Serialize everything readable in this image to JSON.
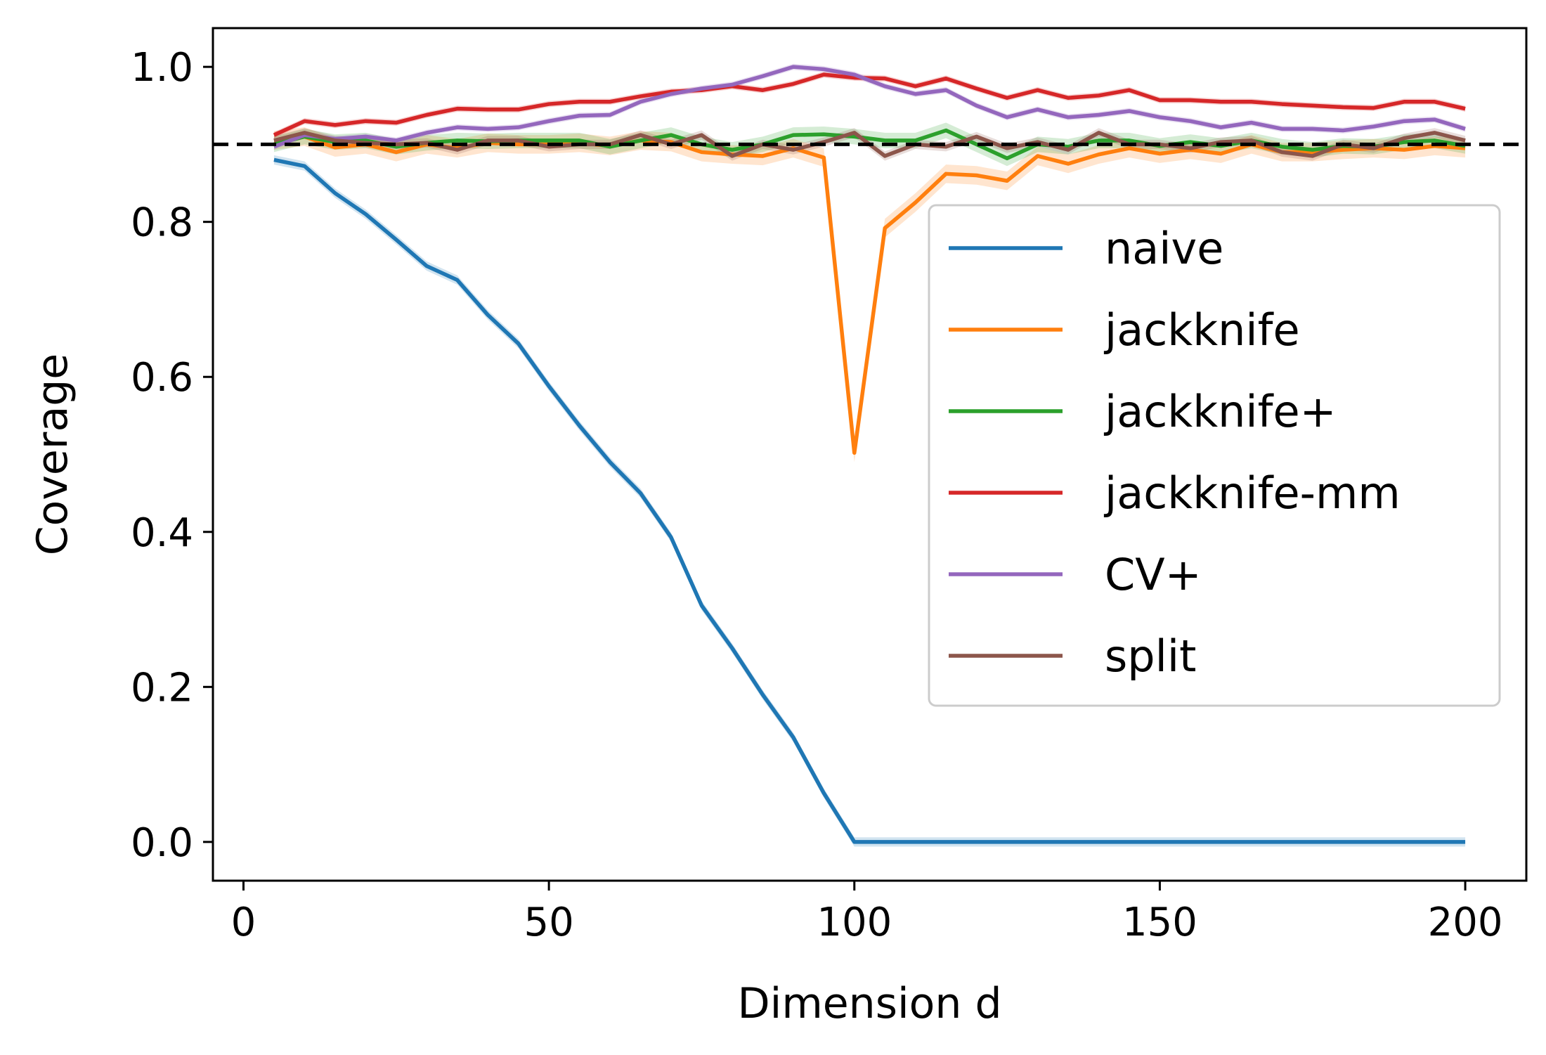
{
  "chart_data": {
    "type": "line",
    "title": "",
    "xlabel": "Dimension d",
    "ylabel": "Coverage",
    "xlim": [
      -5,
      210
    ],
    "ylim": [
      -0.05,
      1.05
    ],
    "xticks": [
      0,
      50,
      100,
      150,
      200
    ],
    "xtick_labels": [
      "0",
      "50",
      "100",
      "150",
      "200"
    ],
    "yticks": [
      0.0,
      0.2,
      0.4,
      0.6,
      0.8,
      1.0
    ],
    "ytick_labels": [
      "0.0",
      "0.2",
      "0.4",
      "0.6",
      "0.8",
      "1.0"
    ],
    "reference_line": {
      "y": 0.9,
      "style": "dashed",
      "color": "#000000"
    },
    "legend_position": "center-right",
    "grid": false,
    "x": [
      5,
      10,
      15,
      20,
      25,
      30,
      35,
      40,
      45,
      50,
      55,
      60,
      65,
      70,
      75,
      80,
      85,
      90,
      95,
      100,
      105,
      110,
      115,
      120,
      125,
      130,
      135,
      140,
      145,
      150,
      155,
      160,
      165,
      170,
      175,
      180,
      185,
      190,
      195,
      200
    ],
    "series": [
      {
        "name": "naive",
        "color": "#1f77b4",
        "values": [
          0.88,
          0.872,
          0.837,
          0.81,
          0.777,
          0.743,
          0.725,
          0.68,
          0.643,
          0.588,
          0.537,
          0.49,
          0.45,
          0.393,
          0.305,
          0.25,
          0.19,
          0.135,
          0.063,
          0.0,
          0.0,
          0.0,
          0.0,
          0.0,
          0.0,
          0.0,
          0.0,
          0.0,
          0.0,
          0.0,
          0.0,
          0.0,
          0.0,
          0.0,
          0.0,
          0.0,
          0.0,
          0.0,
          0.0,
          0.0
        ],
        "band": 0.006
      },
      {
        "name": "jackknife",
        "color": "#ff7f0e",
        "values": [
          0.905,
          0.91,
          0.896,
          0.9,
          0.89,
          0.9,
          0.895,
          0.902,
          0.9,
          0.9,
          0.902,
          0.898,
          0.905,
          0.903,
          0.89,
          0.887,
          0.885,
          0.895,
          0.883,
          0.502,
          0.792,
          0.825,
          0.862,
          0.86,
          0.853,
          0.885,
          0.875,
          0.887,
          0.895,
          0.888,
          0.893,
          0.888,
          0.9,
          0.89,
          0.89,
          0.893,
          0.895,
          0.893,
          0.898,
          0.895
        ],
        "band": 0.012
      },
      {
        "name": "jackknife+",
        "color": "#2ca02c",
        "values": [
          0.9,
          0.91,
          0.903,
          0.905,
          0.897,
          0.902,
          0.905,
          0.904,
          0.905,
          0.905,
          0.905,
          0.897,
          0.905,
          0.912,
          0.9,
          0.893,
          0.9,
          0.912,
          0.913,
          0.91,
          0.905,
          0.905,
          0.918,
          0.9,
          0.882,
          0.9,
          0.897,
          0.905,
          0.905,
          0.898,
          0.903,
          0.898,
          0.905,
          0.897,
          0.893,
          0.898,
          0.897,
          0.903,
          0.905,
          0.898
        ],
        "band": 0.01
      },
      {
        "name": "jackknife-mm",
        "color": "#d62728",
        "values": [
          0.912,
          0.93,
          0.925,
          0.93,
          0.928,
          0.938,
          0.946,
          0.945,
          0.945,
          0.952,
          0.955,
          0.955,
          0.962,
          0.968,
          0.97,
          0.975,
          0.97,
          0.978,
          0.99,
          0.986,
          0.985,
          0.975,
          0.985,
          0.972,
          0.96,
          0.97,
          0.96,
          0.963,
          0.97,
          0.957,
          0.957,
          0.955,
          0.955,
          0.952,
          0.95,
          0.948,
          0.947,
          0.955,
          0.955,
          0.946
        ],
        "band": 0.004
      },
      {
        "name": "CV+",
        "color": "#9467bd",
        "values": [
          0.897,
          0.912,
          0.907,
          0.91,
          0.905,
          0.915,
          0.922,
          0.92,
          0.922,
          0.93,
          0.937,
          0.938,
          0.955,
          0.965,
          0.972,
          0.977,
          0.988,
          1.0,
          0.997,
          0.99,
          0.975,
          0.965,
          0.97,
          0.95,
          0.935,
          0.945,
          0.935,
          0.938,
          0.943,
          0.935,
          0.93,
          0.922,
          0.928,
          0.92,
          0.92,
          0.918,
          0.923,
          0.93,
          0.932,
          0.92
        ],
        "band": 0.004
      },
      {
        "name": "split",
        "color": "#8c564b",
        "values": [
          0.905,
          0.915,
          0.905,
          0.902,
          0.9,
          0.902,
          0.893,
          0.905,
          0.905,
          0.897,
          0.9,
          0.9,
          0.912,
          0.9,
          0.912,
          0.885,
          0.9,
          0.893,
          0.903,
          0.915,
          0.885,
          0.9,
          0.897,
          0.91,
          0.895,
          0.903,
          0.893,
          0.915,
          0.9,
          0.9,
          0.895,
          0.903,
          0.905,
          0.89,
          0.885,
          0.9,
          0.895,
          0.908,
          0.915,
          0.905
        ],
        "band": 0.006
      }
    ]
  }
}
